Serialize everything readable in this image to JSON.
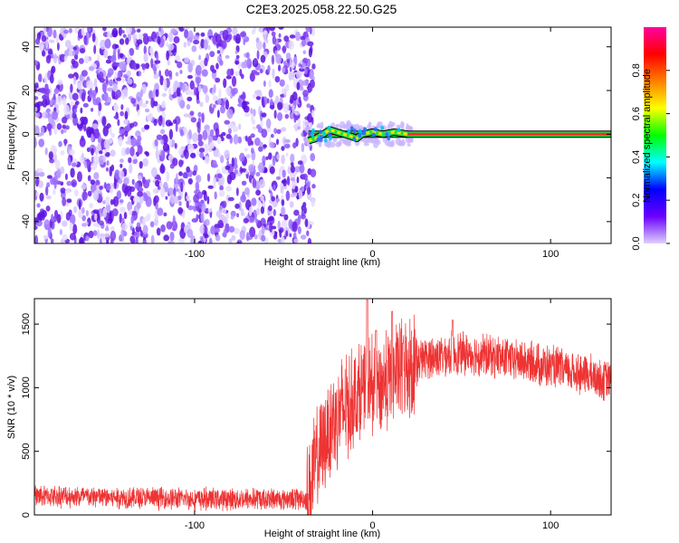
{
  "title": "C2E3.2025.058.22.50.G25",
  "chart_data": [
    {
      "type": "heatmap",
      "xlabel": "Height of straight line (km)",
      "ylabel": "Frequency (Hz)",
      "xlim": [
        -190,
        134
      ],
      "ylim": [
        -50,
        49
      ],
      "xticks": [
        -100,
        0,
        100
      ],
      "yticks": [
        -40,
        -20,
        0,
        20,
        40
      ],
      "noise_region_x": [
        -190,
        -37
      ],
      "transition_region_x": [
        -37,
        22
      ],
      "signal_line": {
        "frequency": 0,
        "x_range": [
          -36,
          134
        ]
      },
      "colorbar": {
        "label": "Normalized spectral amplitude",
        "range": [
          0,
          1
        ],
        "ticks": [
          0.0,
          0.2,
          0.4,
          0.6,
          0.8
        ],
        "colors": [
          "#e0d0ff",
          "#6a00ff",
          "#0000ff",
          "#00ffff",
          "#00ff00",
          "#ffff00",
          "#ff7f00",
          "#ff0000",
          "#ff00a0"
        ]
      },
      "series_color_noise": "#7d2ae8"
    },
    {
      "type": "line",
      "xlabel": "Height of straight line (km)",
      "ylabel": "SNR (10 * v/v)",
      "xlim": [
        -190,
        134
      ],
      "ylim": [
        0,
        1700
      ],
      "xticks": [
        -100,
        0,
        100
      ],
      "yticks": [
        0,
        500,
        1000,
        1500
      ],
      "color": "#ee3333",
      "envelope": {
        "x": [
          -190,
          -150,
          -100,
          -60,
          -37,
          -33,
          -28,
          -22,
          -15,
          -8,
          -3,
          0,
          5,
          12,
          20,
          30,
          45,
          60,
          80,
          100,
          120,
          134
        ],
        "y": [
          150,
          140,
          125,
          125,
          130,
          350,
          550,
          750,
          850,
          950,
          1000,
          1000,
          1020,
          1100,
          1180,
          1230,
          1270,
          1260,
          1220,
          1160,
          1100,
          1050
        ]
      },
      "spikes": [
        {
          "x": -3,
          "y": 1690
        },
        {
          "x": 2,
          "y": 1450
        },
        {
          "x": 11,
          "y": 1600
        },
        {
          "x": 17,
          "y": 1350
        },
        {
          "x": 45,
          "y": 1530
        }
      ]
    }
  ]
}
